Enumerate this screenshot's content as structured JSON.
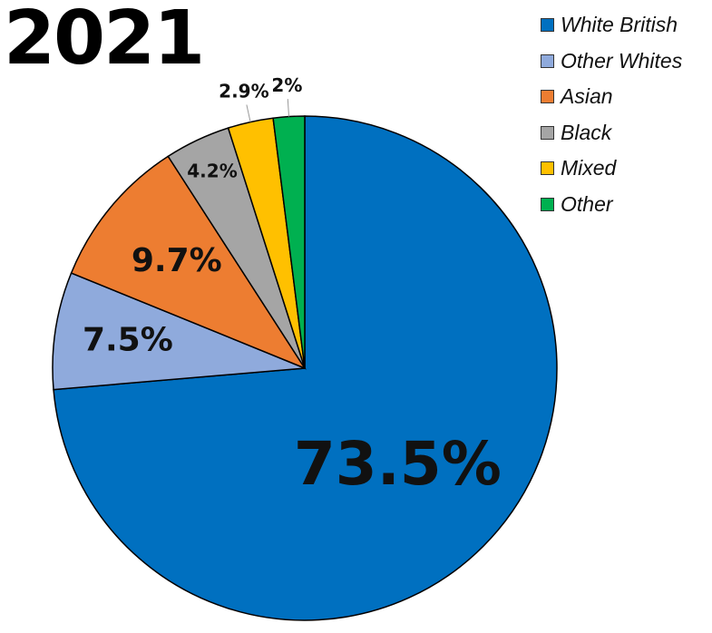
{
  "chart_data": {
    "type": "pie",
    "title": "2021",
    "series": [
      {
        "name": "White British",
        "value": 73.5,
        "label": "73.5%",
        "color": "#0070c0"
      },
      {
        "name": "Other Whites",
        "value": 7.5,
        "label": "7.5%",
        "color": "#8faadc"
      },
      {
        "name": "Asian",
        "value": 9.7,
        "label": "9.7%",
        "color": "#ed7d31"
      },
      {
        "name": "Black",
        "value": 4.2,
        "label": "4.2%",
        "color": "#a5a5a5"
      },
      {
        "name": "Mixed",
        "value": 2.9,
        "label": "2.9%",
        "color": "#ffc000"
      },
      {
        "name": "Other",
        "value": 2,
        "label": "2%",
        "color": "#00b050"
      }
    ],
    "legend_position": "top-right"
  }
}
